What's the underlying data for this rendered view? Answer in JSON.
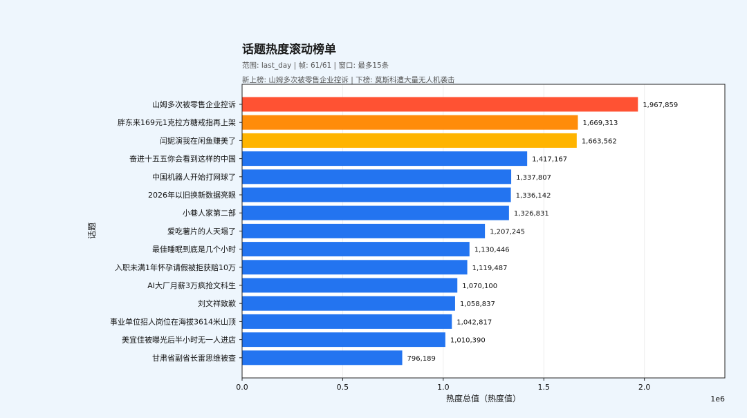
{
  "chart_data": {
    "type": "bar",
    "orientation": "horizontal",
    "title": "话题热度滚动榜单",
    "subtitle": "范围: last_day | 帧: 61/61 | 窗口: 最多15条",
    "subtitle2": "新上榜: 山姆多次被零售企业控诉 | 下榜: 莫斯科遭大量无人机袭击",
    "xlabel": "热度总值（热度值）",
    "ylabel": "话题",
    "x_offset_label": "1e6",
    "xlim": [
      0,
      2400000
    ],
    "xticks": [
      0,
      500000,
      1000000,
      1500000,
      2000000
    ],
    "xtick_labels": [
      "0.0",
      "0.5",
      "1.0",
      "1.5",
      "2.0"
    ],
    "grid": "vertical",
    "categories": [
      "山姆多次被零售企业控诉",
      "胖东来169元1克拉方糖戒指再上架",
      "闫妮演我在闲鱼赚美了",
      "奋进十五五你会看到这样的中国",
      "中国机器人开始打网球了",
      "2026年以旧换新数据亮眼",
      "小巷人家第二部",
      "爱吃薯片的人天塌了",
      "最佳睡眠到底是几个小时",
      "入职未满1年怀孕请假被拒获赔10万",
      "AI大厂月薪3万疯抢文科生",
      "刘文祥致歉",
      "事业单位招人岗位在海拔3614米山顶",
      "美宜佳被曝光后半小时无一人进店",
      "甘肃省副省长雷思维被查"
    ],
    "values": [
      1967859,
      1669313,
      1663562,
      1417167,
      1337807,
      1336142,
      1326831,
      1207245,
      1130446,
      1119487,
      1070100,
      1058837,
      1042817,
      1010390,
      796189
    ],
    "value_labels": [
      "1,967,859",
      "1,669,313",
      "1,663,562",
      "1,417,167",
      "1,337,807",
      "1,336,142",
      "1,326,831",
      "1,207,245",
      "1,130,446",
      "1,119,487",
      "1,070,100",
      "1,058,837",
      "1,042,817",
      "1,010,390",
      "796,189"
    ],
    "colors": [
      "#ff5233",
      "#ff8c0a",
      "#ffb400",
      "#2374f0",
      "#2374f0",
      "#2374f0",
      "#2374f0",
      "#2374f0",
      "#2374f0",
      "#2374f0",
      "#2374f0",
      "#2374f0",
      "#2374f0",
      "#2374f0",
      "#2374f0"
    ]
  }
}
